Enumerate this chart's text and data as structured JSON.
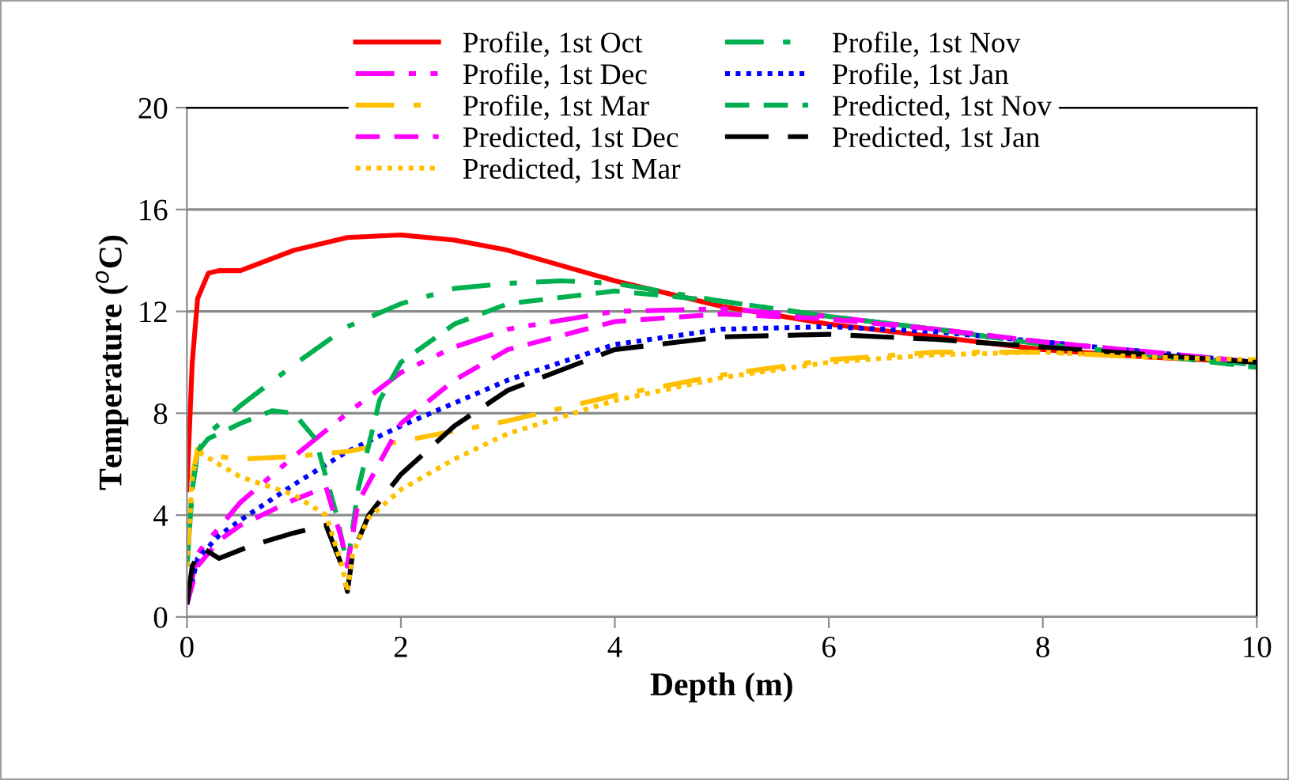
{
  "chart_data": {
    "type": "line",
    "xlabel": "Depth (m)",
    "ylabel": "Temperature ($^{o}$C)",
    "xlim": [
      0,
      10
    ],
    "ylim": [
      0,
      20
    ],
    "xticks": [
      0,
      2,
      4,
      6,
      8,
      10
    ],
    "yticks": [
      0,
      4,
      8,
      12,
      16,
      20
    ],
    "grid": "y",
    "legend": "top",
    "marker": "none",
    "series": [
      {
        "name": "Profile, 1st Oct",
        "color": "#ff0000",
        "line_style": "solid",
        "x": [
          0,
          0.05,
          0.1,
          0.2,
          0.3,
          0.5,
          1,
          1.5,
          2,
          2.5,
          3,
          4,
          5,
          6,
          7,
          8,
          9,
          10
        ],
        "values": [
          5,
          10,
          12.5,
          13.5,
          13.6,
          13.6,
          14.4,
          14.9,
          15.0,
          14.8,
          14.4,
          13.2,
          12.2,
          11.5,
          11.0,
          10.5,
          10.2,
          10.0
        ]
      },
      {
        "name": "Profile, 1st Nov",
        "color": "#00b050",
        "line_style": "dashdot",
        "x": [
          0,
          0.05,
          0.1,
          0.2,
          0.5,
          1,
          1.5,
          2,
          2.5,
          3,
          3.5,
          4,
          5,
          6,
          7,
          8,
          9,
          10
        ],
        "values": [
          2,
          5,
          6.5,
          7.2,
          8.3,
          9.9,
          11.4,
          12.3,
          12.9,
          13.1,
          13.2,
          13.1,
          12.4,
          11.8,
          11.3,
          10.7,
          10.3,
          9.9
        ]
      },
      {
        "name": "Profile, 1st Dec",
        "color": "#ff00ff",
        "line_style": "dashdotdot",
        "x": [
          0,
          0.1,
          0.3,
          0.5,
          1,
          1.5,
          2,
          2.5,
          3,
          4,
          5,
          6,
          7,
          8,
          9,
          10
        ],
        "values": [
          0.5,
          2.5,
          3.5,
          4.5,
          6.3,
          8.0,
          9.6,
          10.6,
          11.3,
          12.0,
          12.1,
          11.8,
          11.3,
          10.8,
          10.4,
          10.0
        ]
      },
      {
        "name": "Profile, 1st Jan",
        "color": "#0000ff",
        "line_style": "dotted",
        "x": [
          0,
          0.1,
          0.3,
          0.5,
          1,
          1.5,
          2,
          3,
          4,
          5,
          6,
          7,
          8,
          9,
          10
        ],
        "values": [
          0.5,
          2.3,
          3.2,
          3.8,
          5.2,
          6.5,
          7.5,
          9.3,
          10.7,
          11.3,
          11.4,
          11.2,
          10.8,
          10.4,
          10.0
        ]
      },
      {
        "name": "Profile, 1st Mar",
        "color": "#ffc000",
        "line_style": "dashdot",
        "x": [
          0,
          0.05,
          0.1,
          0.2,
          0.3,
          0.5,
          1,
          1.5,
          2,
          3,
          4,
          5,
          6,
          7,
          8,
          9,
          10
        ],
        "values": [
          2,
          5.5,
          6.6,
          6.5,
          6.3,
          6.2,
          6.3,
          6.5,
          6.9,
          7.7,
          8.7,
          9.5,
          10.1,
          10.4,
          10.4,
          10.2,
          10.1
        ]
      },
      {
        "name": "Predicted, 1st Nov",
        "color": "#00b050",
        "line_style": "dashed",
        "x": [
          0,
          0.05,
          0.1,
          0.2,
          0.5,
          0.8,
          1,
          1.2,
          1.4,
          1.5,
          1.6,
          1.8,
          2,
          2.5,
          3,
          4,
          5,
          6,
          7,
          8,
          9,
          10
        ],
        "values": [
          2,
          5,
          6.5,
          7.0,
          7.6,
          8.1,
          8.0,
          7.0,
          4.0,
          2.0,
          5.0,
          8.5,
          10.0,
          11.5,
          12.3,
          12.8,
          12.4,
          11.8,
          11.3,
          10.7,
          10.3,
          9.8
        ]
      },
      {
        "name": "Predicted, 1st Dec",
        "color": "#ff00ff",
        "line_style": "dashed",
        "x": [
          0,
          0.1,
          0.3,
          0.5,
          1,
          1.3,
          1.45,
          1.5,
          1.6,
          2,
          2.5,
          3,
          4,
          5,
          6,
          7,
          8,
          9,
          10
        ],
        "values": [
          0.5,
          2.0,
          3.0,
          3.6,
          4.6,
          5.1,
          3.0,
          2.0,
          4.5,
          7.6,
          9.3,
          10.5,
          11.6,
          11.9,
          11.7,
          11.3,
          10.8,
          10.4,
          10.0
        ]
      },
      {
        "name": "Predicted, 1st Jan",
        "color": "#000000",
        "line_style": "longdash",
        "x": [
          0,
          0.05,
          0.15,
          0.3,
          0.6,
          1,
          1.3,
          1.45,
          1.5,
          1.55,
          1.7,
          2,
          2.5,
          3,
          4,
          5,
          6,
          7,
          8,
          9,
          10
        ],
        "values": [
          0.5,
          2.0,
          2.7,
          2.3,
          2.8,
          3.3,
          3.6,
          2.0,
          1.0,
          2.5,
          4.0,
          5.6,
          7.5,
          8.9,
          10.5,
          11.0,
          11.1,
          10.9,
          10.6,
          10.3,
          10.0
        ]
      },
      {
        "name": "Predicted, 1st Mar",
        "color": "#ffc000",
        "line_style": "dotted",
        "x": [
          0,
          0.05,
          0.1,
          0.3,
          0.5,
          1,
          1.3,
          1.45,
          1.5,
          1.55,
          1.7,
          2,
          2.5,
          3,
          4,
          5,
          6,
          7,
          8,
          9,
          10
        ],
        "values": [
          2,
          5.5,
          6.5,
          6.0,
          5.5,
          4.8,
          4.0,
          2.0,
          1.0,
          2.5,
          3.9,
          5.0,
          6.2,
          7.2,
          8.5,
          9.4,
          10.0,
          10.3,
          10.4,
          10.2,
          10.1
        ]
      }
    ]
  }
}
